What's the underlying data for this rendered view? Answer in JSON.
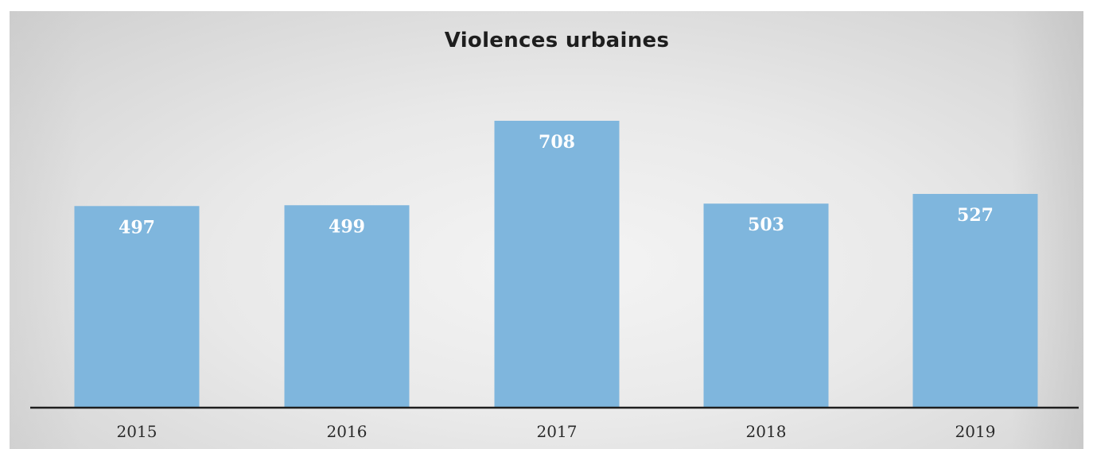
{
  "chart_data": {
    "type": "bar",
    "title": "Violences urbaines",
    "categories": [
      "2015",
      "2016",
      "2017",
      "2018",
      "2019"
    ],
    "values": [
      497,
      499,
      708,
      503,
      527
    ],
    "xlabel": "",
    "ylabel": "",
    "ylim": [
      0,
      770
    ],
    "grid": false,
    "legend": "none",
    "bar_color": "#7fb6dd",
    "label_color": "#ffffff"
  }
}
